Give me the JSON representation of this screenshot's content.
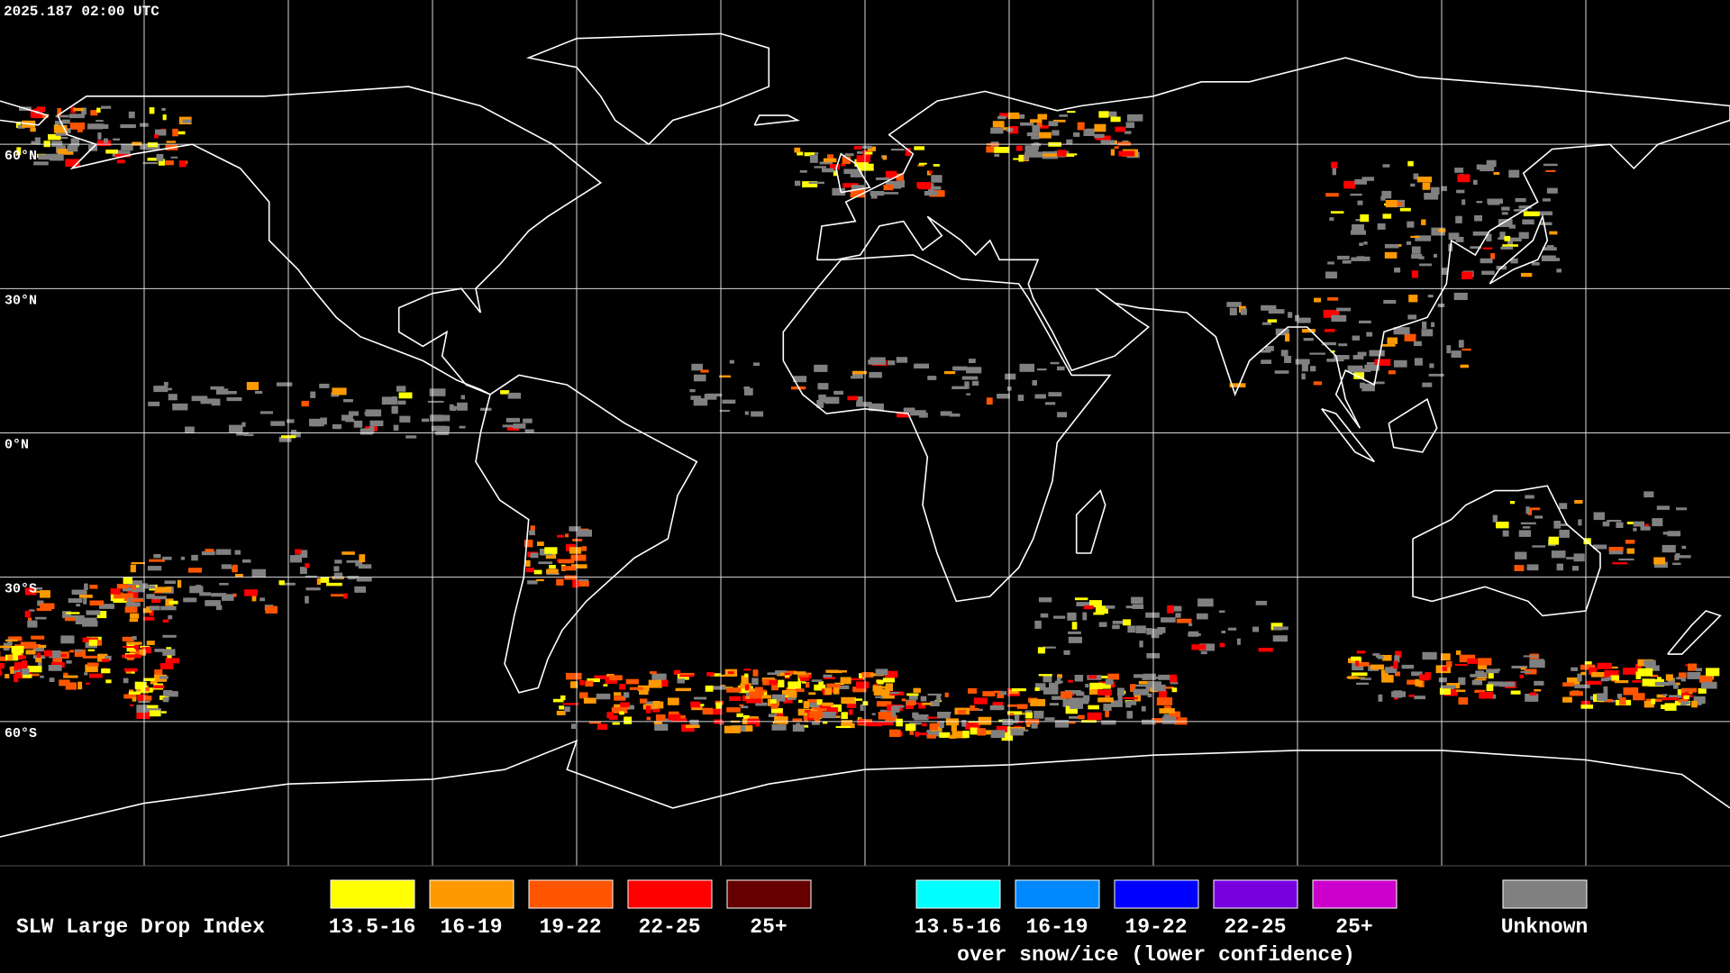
{
  "header": {
    "timestamp": "2025.187 02:00 UTC"
  },
  "map": {
    "lat_labels": [
      "60°N",
      "30°N",
      "0°N",
      "30°S",
      "60°S"
    ]
  },
  "legend": {
    "title": "SLW Large Drop Index",
    "groups": [
      {
        "items": [
          {
            "label": "13.5-16",
            "color": "#ffff00"
          },
          {
            "label": "16-19",
            "color": "#ff9900"
          },
          {
            "label": "19-22",
            "color": "#ff5500"
          },
          {
            "label": "22-25",
            "color": "#ff0000"
          },
          {
            "label": "25+",
            "color": "#660000"
          }
        ]
      },
      {
        "items": [
          {
            "label": "13.5-16",
            "color": "#00ffff"
          },
          {
            "label": "16-19",
            "color": "#0088ff"
          },
          {
            "label": "19-22",
            "color": "#0000ff"
          },
          {
            "label": "22-25",
            "color": "#7700dd"
          },
          {
            "label": "25+",
            "color": "#cc00cc"
          }
        ],
        "caption": "over snow/ice (lower confidence)"
      },
      {
        "items": [
          {
            "label": "Unknown",
            "color": "#808080"
          }
        ]
      }
    ]
  }
}
